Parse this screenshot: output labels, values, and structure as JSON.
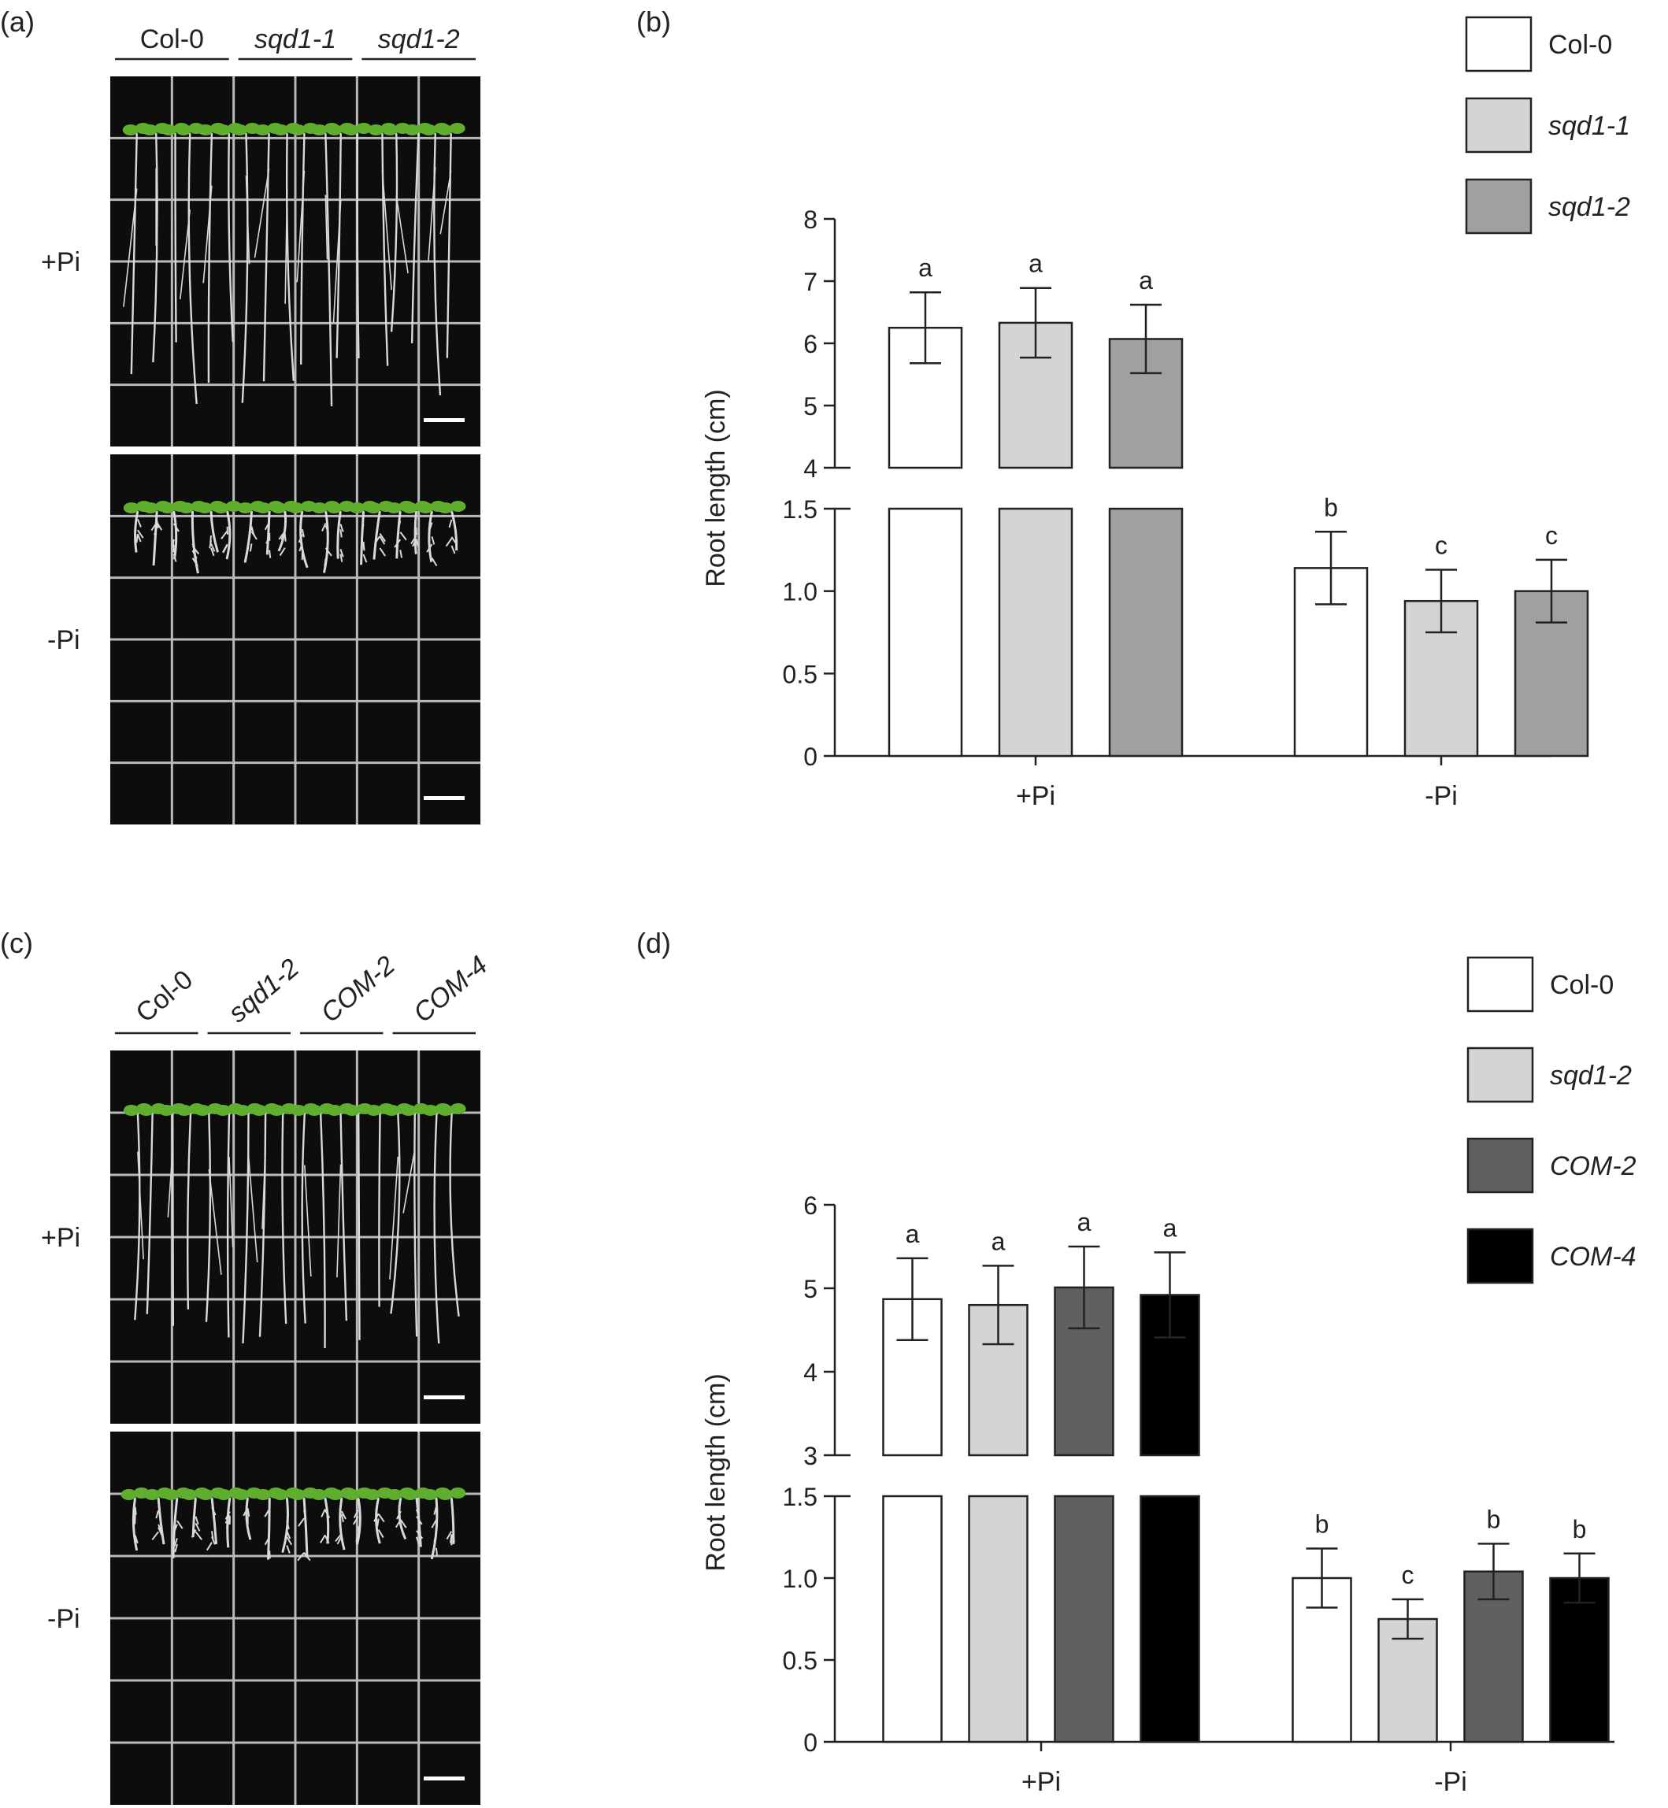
{
  "figure": {
    "panels": {
      "a": {
        "label": "(a)",
        "genotypes": [
          "Col-0",
          "sqd1-1",
          "sqd1-2"
        ],
        "genotypes_italic": [
          false,
          true,
          true
        ],
        "rows": [
          "+Pi",
          "-Pi"
        ]
      },
      "c": {
        "label": "(c)",
        "genotypes": [
          "Col-0",
          "sqd1-2",
          "COM-2",
          "COM-4"
        ],
        "genotypes_italic": [
          false,
          true,
          true,
          true
        ],
        "rows": [
          "+Pi",
          "-Pi"
        ]
      }
    }
  },
  "colors": {
    "plate_background": "#0d0d0d",
    "grid_line": "#b9b9b9",
    "seedling_leaf": "#5fae2e",
    "root": "#d9d9d9",
    "scale_bar": "#ffffff"
  },
  "chart_data": [
    {
      "panel_label": "(b)",
      "type": "bar",
      "categories": [
        "+Pi",
        "-Pi"
      ],
      "ylabel": "Root length (cm)",
      "y_axis_break": true,
      "y_lower_range": [
        0,
        1.5
      ],
      "y_lower_ticks": [
        "0",
        "0.5",
        "1.0",
        "1.5"
      ],
      "y_upper_range": [
        4,
        8
      ],
      "y_upper_ticks": [
        "4",
        "5",
        "6",
        "7",
        "8"
      ],
      "legend_position": "top-right",
      "grid": false,
      "series": [
        {
          "name": "Col-0",
          "italic": false,
          "color": "#ffffff",
          "values": [
            6.25,
            1.14
          ],
          "errors": [
            0.57,
            0.22
          ],
          "letters": [
            "a",
            "b"
          ]
        },
        {
          "name": "sqd1-1",
          "italic": true,
          "color": "#d4d4d4",
          "values": [
            6.33,
            0.94
          ],
          "errors": [
            0.56,
            0.19
          ],
          "letters": [
            "a",
            "c"
          ]
        },
        {
          "name": "sqd1-2",
          "italic": true,
          "color": "#a0a0a3",
          "values": [
            6.07,
            1.0
          ],
          "errors": [
            0.55,
            0.19
          ],
          "letters": [
            "a",
            "c"
          ]
        }
      ]
    },
    {
      "panel_label": "(d)",
      "type": "bar",
      "categories": [
        "+Pi",
        "-Pi"
      ],
      "ylabel": "Root length (cm)",
      "y_axis_break": true,
      "y_lower_range": [
        0,
        1.5
      ],
      "y_lower_ticks": [
        "0",
        "0.5",
        "1.0",
        "1.5"
      ],
      "y_upper_range": [
        3,
        6
      ],
      "y_upper_ticks": [
        "3",
        "4",
        "5",
        "6"
      ],
      "legend_position": "top-right",
      "grid": false,
      "series": [
        {
          "name": "Col-0",
          "italic": false,
          "color": "#ffffff",
          "values": [
            4.87,
            1.0
          ],
          "errors": [
            0.49,
            0.18
          ],
          "letters": [
            "a",
            "b"
          ]
        },
        {
          "name": "sqd1-2",
          "italic": true,
          "color": "#d4d4d4",
          "values": [
            4.8,
            0.75
          ],
          "errors": [
            0.47,
            0.12
          ],
          "letters": [
            "a",
            "c"
          ]
        },
        {
          "name": "COM-2",
          "italic": true,
          "color": "#606060",
          "values": [
            5.01,
            1.04
          ],
          "errors": [
            0.49,
            0.17
          ],
          "letters": [
            "a",
            "b"
          ]
        },
        {
          "name": "COM-4",
          "italic": true,
          "color": "#000000",
          "values": [
            4.92,
            1.0
          ],
          "errors": [
            0.51,
            0.15
          ],
          "letters": [
            "a",
            "b"
          ]
        }
      ]
    }
  ]
}
